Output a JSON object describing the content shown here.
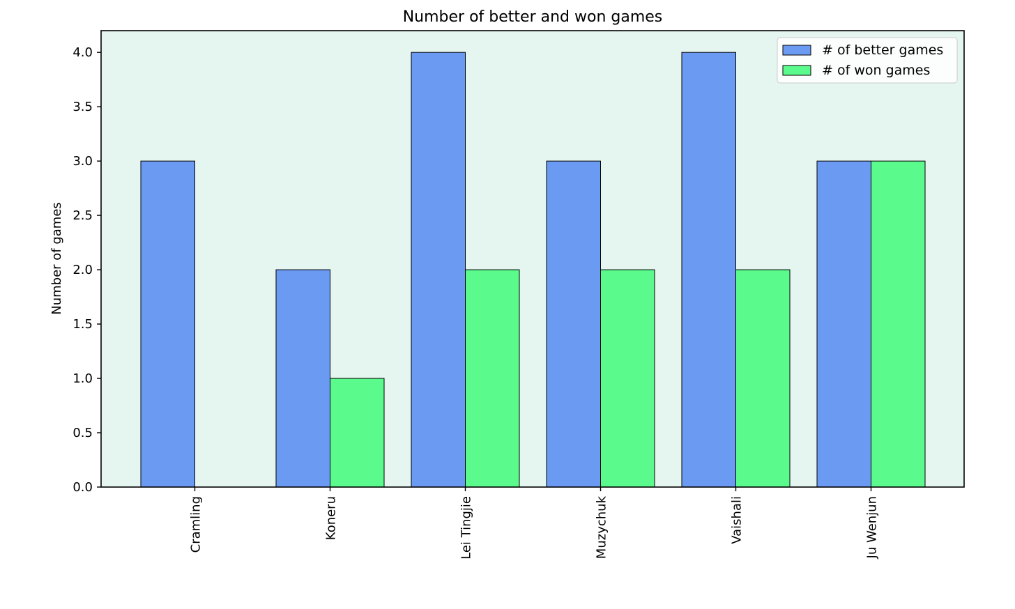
{
  "chart_data": {
    "type": "bar",
    "title": "Number of better and won games",
    "xlabel": "",
    "ylabel": "Number of games",
    "categories": [
      "Cramling",
      "Koneru",
      "Lei Tingjie",
      "Muzychuk",
      "Vaishali",
      "Ju Wenjun"
    ],
    "series": [
      {
        "name": "# of better games",
        "values": [
          3,
          2,
          4,
          3,
          4,
          3
        ],
        "color": "#6b9af2"
      },
      {
        "name": "# of won games",
        "values": [
          0,
          1,
          2,
          2,
          2,
          3
        ],
        "color": "#5afa8c"
      }
    ],
    "ylim": [
      0,
      4.2
    ],
    "yticks": [
      "0.0",
      "0.5",
      "1.0",
      "1.5",
      "2.0",
      "2.5",
      "3.0",
      "3.5",
      "4.0"
    ],
    "grid": false,
    "legend_position": "top-right",
    "plot_background": "#e5f5ef",
    "bar_edge_color": "#000000"
  }
}
